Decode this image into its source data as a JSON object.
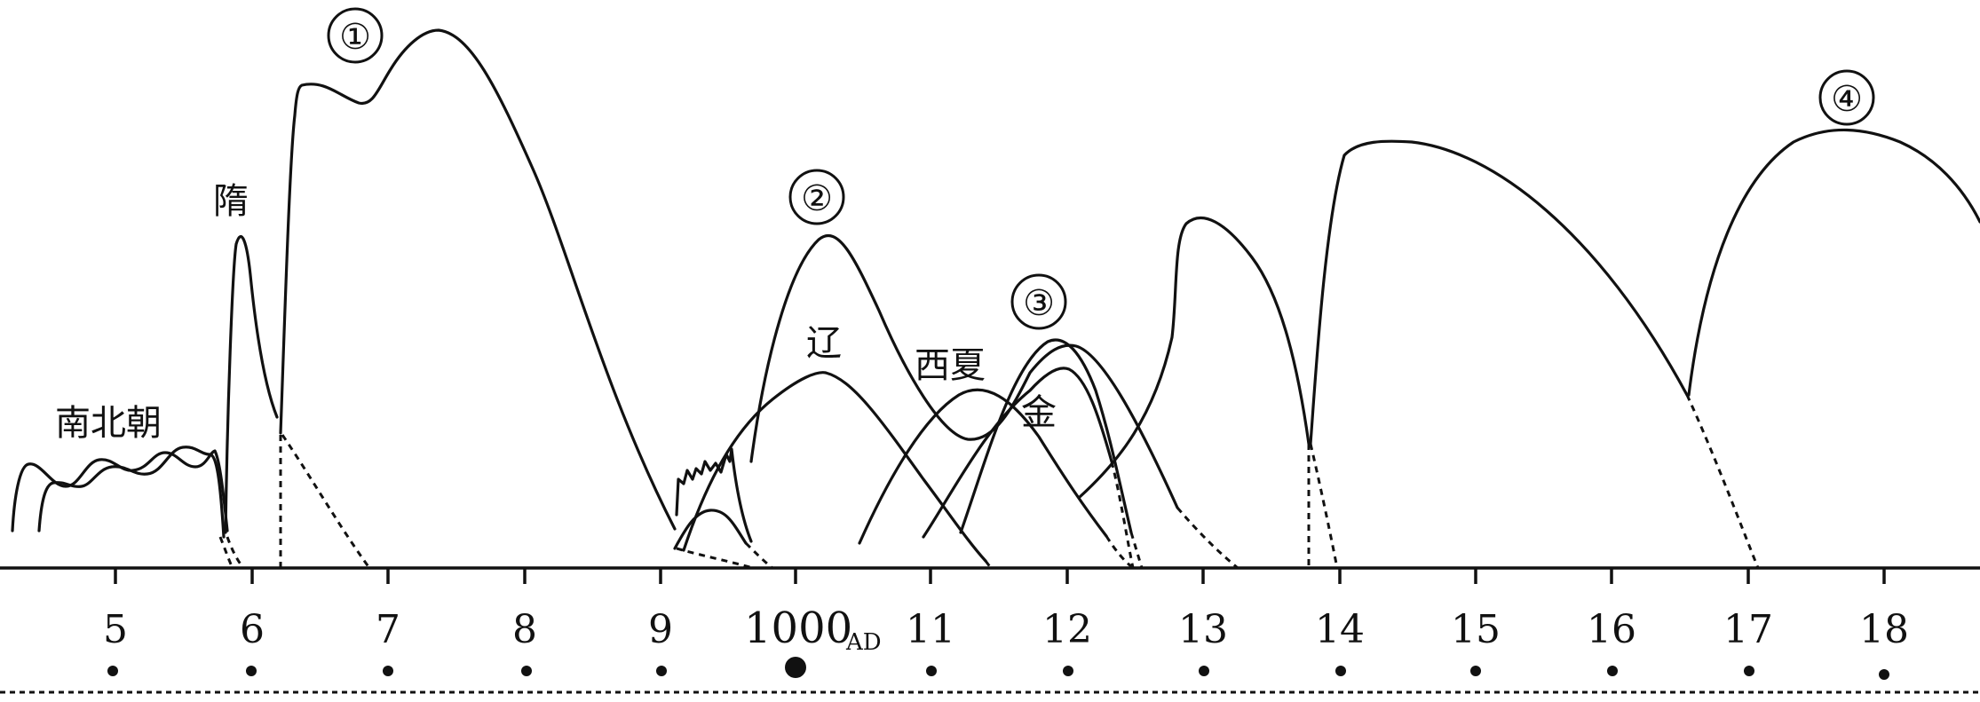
{
  "dynasty_labels": {
    "nanbeichao": "南北朝",
    "sui": "隋",
    "liao": "辽",
    "xixia": "西夏",
    "jin": "金"
  },
  "peak_markers": [
    "①",
    "②",
    "③",
    "④"
  ],
  "axis": {
    "tick_labels": [
      "5",
      "6",
      "7",
      "8",
      "9",
      "1000",
      "11",
      "12",
      "13",
      "14",
      "15",
      "16",
      "17",
      "18"
    ],
    "ad_suffix": "AD"
  },
  "colors": {
    "ink": "#111111",
    "background": "#ffffff"
  }
}
